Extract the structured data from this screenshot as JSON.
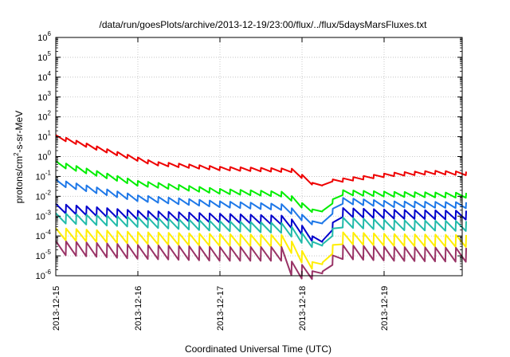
{
  "chart_data": {
    "type": "line",
    "title": "/data/run/goesPlots/archive/2013-12-19/23:00/flux/../flux/5daysMarsFluxes.txt",
    "xlabel": "Coordinated Universal Time (UTC)",
    "ylabel": "protons/cm²-s-sr-MeV",
    "yscale": "log",
    "ylim_exponents": [
      -6,
      6
    ],
    "xlim": [
      0,
      5.0
    ],
    "x_unit": "days since 2013-12-15",
    "grid": true,
    "x_tick_labels": [
      "2013-12-15",
      "2013-12-16",
      "2013-12-17",
      "2013-12-18",
      "2013-12-19"
    ],
    "series": [
      {
        "color": "#ee0000",
        "base": [
          [
            0,
            1.0
          ],
          [
            0.7,
            0.2
          ],
          [
            1.2,
            -0.35
          ],
          [
            2.0,
            -0.6
          ],
          [
            2.9,
            -0.7
          ],
          [
            3.0,
            -1.0
          ],
          [
            3.15,
            -1.4
          ],
          [
            3.25,
            -1.45
          ],
          [
            3.35,
            -1.25
          ],
          [
            4.1,
            -0.9
          ],
          [
            4.6,
            -0.8
          ],
          [
            5.0,
            -0.85
          ]
        ],
        "amp": 0.18
      },
      {
        "color": "#00ee00",
        "base": [
          [
            0,
            -0.35
          ],
          [
            1.0,
            -1.35
          ],
          [
            2.0,
            -1.75
          ],
          [
            2.8,
            -1.9
          ],
          [
            3.05,
            -2.6
          ],
          [
            3.2,
            -2.75
          ],
          [
            3.35,
            -2.75
          ],
          [
            3.4,
            -1.8
          ],
          [
            4.1,
            -1.9
          ],
          [
            5.0,
            -1.95
          ]
        ],
        "amp": 0.25
      },
      {
        "color": "#1e78e8",
        "base": [
          [
            0,
            -1.3
          ],
          [
            1.0,
            -2.1
          ],
          [
            2.0,
            -2.4
          ],
          [
            2.8,
            -2.55
          ],
          [
            3.05,
            -3.2
          ],
          [
            3.2,
            -3.35
          ],
          [
            3.35,
            -3.35
          ],
          [
            3.4,
            -2.2
          ],
          [
            4.1,
            -2.4
          ],
          [
            5.0,
            -2.45
          ]
        ],
        "amp": 0.3
      },
      {
        "color": "#0000cc",
        "base": [
          [
            0,
            -2.6
          ],
          [
            1.0,
            -2.95
          ],
          [
            2.0,
            -3.1
          ],
          [
            2.8,
            -3.2
          ],
          [
            3.0,
            -3.7
          ],
          [
            3.2,
            -4.25
          ],
          [
            3.35,
            -4.3
          ],
          [
            3.4,
            -2.8
          ],
          [
            4.1,
            -2.9
          ],
          [
            5.0,
            -2.95
          ]
        ],
        "amp": 0.45
      },
      {
        "color": "#22bbaa",
        "base": [
          [
            0,
            -3.1
          ],
          [
            1.0,
            -3.3
          ],
          [
            2.0,
            -3.5
          ],
          [
            2.8,
            -3.6
          ],
          [
            3.0,
            -4.1
          ],
          [
            3.2,
            -4.45
          ],
          [
            3.35,
            -4.45
          ],
          [
            3.4,
            -3.3
          ],
          [
            4.1,
            -3.45
          ],
          [
            5.0,
            -3.5
          ]
        ],
        "amp": 0.5
      },
      {
        "color": "#ffee00",
        "base": [
          [
            0,
            -3.9
          ],
          [
            1.0,
            -4.1
          ],
          [
            2.0,
            -4.2
          ],
          [
            2.8,
            -4.25
          ],
          [
            2.95,
            -4.9
          ],
          [
            3.1,
            -5.35
          ],
          [
            3.35,
            -5.4
          ],
          [
            3.4,
            -4.1
          ],
          [
            4.1,
            -4.2
          ],
          [
            5.0,
            -4.25
          ]
        ],
        "amp": 0.6
      },
      {
        "color": "#993366",
        "base": [
          [
            0,
            -4.6
          ],
          [
            1.0,
            -4.8
          ],
          [
            2.0,
            -4.9
          ],
          [
            2.75,
            -4.9
          ],
          [
            2.85,
            -5.6
          ],
          [
            3.0,
            -5.8
          ],
          [
            3.35,
            -5.85
          ],
          [
            3.4,
            -4.8
          ],
          [
            4.1,
            -4.9
          ],
          [
            5.0,
            -4.95
          ]
        ],
        "amp": 0.7
      }
    ],
    "sawtooth_period_days": 0.125
  }
}
